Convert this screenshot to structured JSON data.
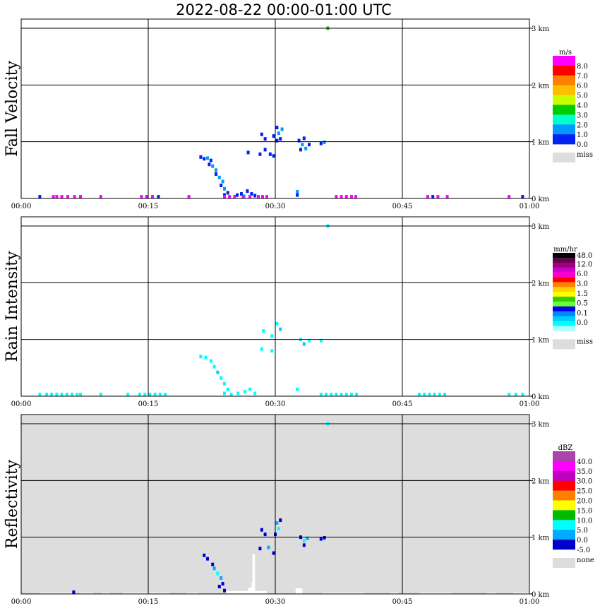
{
  "title": "2022-08-22   00:00-01:00 UTC",
  "time_ticks": [
    "00:00",
    "00:15",
    "00:30",
    "00:45",
    "01:00"
  ],
  "height_ticks": [
    "0 km",
    "1 km",
    "2 km",
    "3 km"
  ],
  "chart_data": [
    {
      "type": "heatmap",
      "panel": "fall-velocity",
      "ylabel": "Fall Velocity",
      "x_range_minutes": [
        0,
        60
      ],
      "y_range_km": [
        0,
        3.0
      ],
      "grid": true,
      "background": "#ffffff",
      "legend": {
        "unit": "m/s",
        "labels": [
          "8.0",
          "7.0",
          "6.0",
          "5.0",
          "4.0",
          "3.0",
          "2.0",
          "1.0",
          "0.0"
        ],
        "colors": [
          "#ff00ff",
          "#ff0000",
          "#ff7f00",
          "#ffbf00",
          "#c8ff00",
          "#00cc00",
          "#00ffcc",
          "#0099ff",
          "#0022ee"
        ],
        "missing_label": "miss",
        "missing_color": "#dddddd"
      },
      "cells": [
        {
          "t": 2.2,
          "h": 0.03,
          "c": 8
        },
        {
          "t": 3.8,
          "h": 0.03,
          "c": 0
        },
        {
          "t": 4.2,
          "h": 0.03,
          "c": 0
        },
        {
          "t": 4.8,
          "h": 0.03,
          "c": 0
        },
        {
          "t": 5.5,
          "h": 0.03,
          "c": 0
        },
        {
          "t": 6.3,
          "h": 0.03,
          "c": 0
        },
        {
          "t": 7.0,
          "h": 0.03,
          "c": 0
        },
        {
          "t": 9.4,
          "h": 0.03,
          "c": 0
        },
        {
          "t": 14.2,
          "h": 0.03,
          "c": 0
        },
        {
          "t": 14.8,
          "h": 0.03,
          "c": 0
        },
        {
          "t": 15.5,
          "h": 0.03,
          "c": 0
        },
        {
          "t": 16.2,
          "h": 0.03,
          "c": 8
        },
        {
          "t": 19.8,
          "h": 0.03,
          "c": 0
        },
        {
          "t": 21.2,
          "h": 0.73,
          "c": 8
        },
        {
          "t": 21.6,
          "h": 0.7,
          "c": 8
        },
        {
          "t": 22.0,
          "h": 0.71,
          "c": 7
        },
        {
          "t": 22.4,
          "h": 0.67,
          "c": 8
        },
        {
          "t": 22.2,
          "h": 0.6,
          "c": 8
        },
        {
          "t": 22.6,
          "h": 0.57,
          "c": 7
        },
        {
          "t": 23.0,
          "h": 0.5,
          "c": 7
        },
        {
          "t": 23.0,
          "h": 0.43,
          "c": 8
        },
        {
          "t": 23.4,
          "h": 0.37,
          "c": 7
        },
        {
          "t": 23.8,
          "h": 0.3,
          "c": 7
        },
        {
          "t": 23.6,
          "h": 0.23,
          "c": 8
        },
        {
          "t": 24.0,
          "h": 0.17,
          "c": 7
        },
        {
          "t": 24.4,
          "h": 0.1,
          "c": 8
        },
        {
          "t": 24.0,
          "h": 0.06,
          "c": 8
        },
        {
          "t": 24.0,
          "h": 0.03,
          "c": 0
        },
        {
          "t": 24.6,
          "h": 0.03,
          "c": 0
        },
        {
          "t": 25.2,
          "h": 0.03,
          "c": 0
        },
        {
          "t": 25.5,
          "h": 0.06,
          "c": 8
        },
        {
          "t": 26.0,
          "h": 0.08,
          "c": 8
        },
        {
          "t": 26.3,
          "h": 0.04,
          "c": 7
        },
        {
          "t": 26.7,
          "h": 0.13,
          "c": 8
        },
        {
          "t": 27.2,
          "h": 0.08,
          "c": 8
        },
        {
          "t": 27.6,
          "h": 0.05,
          "c": 8
        },
        {
          "t": 28.0,
          "h": 0.03,
          "c": 0
        },
        {
          "t": 28.5,
          "h": 0.03,
          "c": 0
        },
        {
          "t": 29.0,
          "h": 0.03,
          "c": 0
        },
        {
          "t": 27.0,
          "h": 0.03,
          "c": 0
        },
        {
          "t": 26.2,
          "h": 0.03,
          "c": 0
        },
        {
          "t": 26.8,
          "h": 0.81,
          "c": 8
        },
        {
          "t": 28.2,
          "h": 0.78,
          "c": 8
        },
        {
          "t": 28.8,
          "h": 0.86,
          "c": 8
        },
        {
          "t": 29.4,
          "h": 0.78,
          "c": 8
        },
        {
          "t": 29.8,
          "h": 0.75,
          "c": 8
        },
        {
          "t": 28.4,
          "h": 1.13,
          "c": 8
        },
        {
          "t": 28.8,
          "h": 1.05,
          "c": 8
        },
        {
          "t": 29.8,
          "h": 1.1,
          "c": 8
        },
        {
          "t": 30.2,
          "h": 1.25,
          "c": 8
        },
        {
          "t": 30.4,
          "h": 1.15,
          "c": 7
        },
        {
          "t": 30.8,
          "h": 1.22,
          "c": 7
        },
        {
          "t": 30.6,
          "h": 1.05,
          "c": 8
        },
        {
          "t": 30.2,
          "h": 1.02,
          "c": 8
        },
        {
          "t": 32.8,
          "h": 1.02,
          "c": 8
        },
        {
          "t": 33.2,
          "h": 0.95,
          "c": 7
        },
        {
          "t": 33.6,
          "h": 0.88,
          "c": 7
        },
        {
          "t": 33.4,
          "h": 1.06,
          "c": 8
        },
        {
          "t": 34.0,
          "h": 0.95,
          "c": 8
        },
        {
          "t": 33.0,
          "h": 0.86,
          "c": 8
        },
        {
          "t": 35.4,
          "h": 0.97,
          "c": 8
        },
        {
          "t": 35.8,
          "h": 0.99,
          "c": 7
        },
        {
          "t": 32.6,
          "h": 0.12,
          "c": 7
        },
        {
          "t": 32.6,
          "h": 0.06,
          "c": 8
        },
        {
          "t": 36.2,
          "h": 3.0,
          "c": 5
        },
        {
          "t": 37.2,
          "h": 0.03,
          "c": 0
        },
        {
          "t": 37.8,
          "h": 0.03,
          "c": 0
        },
        {
          "t": 38.4,
          "h": 0.03,
          "c": 0
        },
        {
          "t": 39.0,
          "h": 0.03,
          "c": 0
        },
        {
          "t": 39.5,
          "h": 0.03,
          "c": 0
        },
        {
          "t": 48.0,
          "h": 0.03,
          "c": 0
        },
        {
          "t": 48.6,
          "h": 0.03,
          "c": 8
        },
        {
          "t": 49.2,
          "h": 0.03,
          "c": 0
        },
        {
          "t": 50.3,
          "h": 0.03,
          "c": 0
        },
        {
          "t": 57.6,
          "h": 0.03,
          "c": 0
        },
        {
          "t": 59.2,
          "h": 0.03,
          "c": 8
        }
      ]
    },
    {
      "type": "heatmap",
      "panel": "rain-intensity",
      "ylabel": "Rain Intensity",
      "x_range_minutes": [
        0,
        60
      ],
      "y_range_km": [
        0,
        3.0
      ],
      "grid": true,
      "background": "#ffffff",
      "legend": {
        "unit": "mm/hr",
        "labels": [
          "48.0",
          "12.0",
          "6.0",
          "3.0",
          "1.5",
          "0.5",
          "0.1",
          "0.0"
        ],
        "colors": [
          "#000000",
          "#5a0a46",
          "#a0007f",
          "#cc00cc",
          "#ff00cc",
          "#ff0000",
          "#ff8000",
          "#ffd000",
          "#ffff00",
          "#33cc00",
          "#66ff33",
          "#0000ee",
          "#0088ff",
          "#00ccff",
          "#00ffff",
          "#aaffff"
        ],
        "missing_label": "miss",
        "missing_color": "#dddddd"
      },
      "cells": [
        {
          "t": 2.2,
          "h": 0.03,
          "c": 14
        },
        {
          "t": 3.0,
          "h": 0.03,
          "c": 14
        },
        {
          "t": 3.6,
          "h": 0.03,
          "c": 14
        },
        {
          "t": 4.2,
          "h": 0.03,
          "c": 14
        },
        {
          "t": 4.8,
          "h": 0.03,
          "c": 14
        },
        {
          "t": 5.4,
          "h": 0.03,
          "c": 14
        },
        {
          "t": 6.0,
          "h": 0.03,
          "c": 14
        },
        {
          "t": 6.6,
          "h": 0.03,
          "c": 14
        },
        {
          "t": 7.0,
          "h": 0.03,
          "c": 14
        },
        {
          "t": 9.4,
          "h": 0.03,
          "c": 14
        },
        {
          "t": 12.6,
          "h": 0.03,
          "c": 14
        },
        {
          "t": 14.0,
          "h": 0.03,
          "c": 14
        },
        {
          "t": 14.6,
          "h": 0.03,
          "c": 14
        },
        {
          "t": 15.2,
          "h": 0.03,
          "c": 14
        },
        {
          "t": 15.8,
          "h": 0.03,
          "c": 14
        },
        {
          "t": 16.4,
          "h": 0.03,
          "c": 14
        },
        {
          "t": 17.0,
          "h": 0.03,
          "c": 14
        },
        {
          "t": 21.2,
          "h": 0.7,
          "c": 14
        },
        {
          "t": 21.8,
          "h": 0.68,
          "c": 14
        },
        {
          "t": 22.4,
          "h": 0.62,
          "c": 14
        },
        {
          "t": 22.8,
          "h": 0.52,
          "c": 14
        },
        {
          "t": 23.2,
          "h": 0.42,
          "c": 13
        },
        {
          "t": 23.6,
          "h": 0.32,
          "c": 14
        },
        {
          "t": 24.0,
          "h": 0.22,
          "c": 14
        },
        {
          "t": 24.4,
          "h": 0.12,
          "c": 14
        },
        {
          "t": 24.0,
          "h": 0.05,
          "c": 14
        },
        {
          "t": 24.8,
          "h": 0.03,
          "c": 14
        },
        {
          "t": 25.6,
          "h": 0.05,
          "c": 14
        },
        {
          "t": 26.4,
          "h": 0.08,
          "c": 14
        },
        {
          "t": 27.0,
          "h": 0.12,
          "c": 14
        },
        {
          "t": 27.6,
          "h": 0.05,
          "c": 14
        },
        {
          "t": 28.6,
          "h": 1.15,
          "c": 14
        },
        {
          "t": 30.2,
          "h": 1.28,
          "c": 14
        },
        {
          "t": 30.6,
          "h": 1.18,
          "c": 13
        },
        {
          "t": 29.6,
          "h": 1.06,
          "c": 14
        },
        {
          "t": 28.4,
          "h": 0.83,
          "c": 14
        },
        {
          "t": 29.6,
          "h": 0.8,
          "c": 14
        },
        {
          "t": 33.0,
          "h": 1.0,
          "c": 14
        },
        {
          "t": 33.4,
          "h": 0.92,
          "c": 13
        },
        {
          "t": 34.0,
          "h": 0.98,
          "c": 14
        },
        {
          "t": 35.4,
          "h": 0.98,
          "c": 14
        },
        {
          "t": 32.6,
          "h": 0.12,
          "c": 14
        },
        {
          "t": 36.2,
          "h": 3.0,
          "c": 14
        },
        {
          "t": 35.4,
          "h": 0.03,
          "c": 14
        },
        {
          "t": 36.0,
          "h": 0.03,
          "c": 14
        },
        {
          "t": 36.6,
          "h": 0.03,
          "c": 14
        },
        {
          "t": 37.2,
          "h": 0.03,
          "c": 14
        },
        {
          "t": 37.8,
          "h": 0.03,
          "c": 14
        },
        {
          "t": 38.4,
          "h": 0.03,
          "c": 14
        },
        {
          "t": 39.0,
          "h": 0.03,
          "c": 14
        },
        {
          "t": 39.6,
          "h": 0.03,
          "c": 14
        },
        {
          "t": 47.0,
          "h": 0.03,
          "c": 14
        },
        {
          "t": 47.6,
          "h": 0.03,
          "c": 14
        },
        {
          "t": 48.2,
          "h": 0.03,
          "c": 14
        },
        {
          "t": 48.8,
          "h": 0.03,
          "c": 14
        },
        {
          "t": 49.4,
          "h": 0.03,
          "c": 14
        },
        {
          "t": 50.0,
          "h": 0.03,
          "c": 14
        },
        {
          "t": 57.6,
          "h": 0.03,
          "c": 14
        },
        {
          "t": 58.4,
          "h": 0.03,
          "c": 14
        },
        {
          "t": 59.2,
          "h": 0.03,
          "c": 14
        }
      ]
    },
    {
      "type": "heatmap",
      "panel": "reflectivity",
      "ylabel": "Reflectivity",
      "x_range_minutes": [
        0,
        60
      ],
      "y_range_km": [
        0,
        3.0
      ],
      "grid": true,
      "background": "#dddddd",
      "legend": {
        "unit": "dBZ",
        "labels": [
          "40.0",
          "35.0",
          "30.0",
          "25.0",
          "20.0",
          "15.0",
          "10.0",
          "5.0",
          "0.0",
          "-5.0"
        ],
        "colors": [
          "#aa44aa",
          "#ff00ff",
          "#c000c0",
          "#ff0000",
          "#ff7f00",
          "#ffff00",
          "#00bb00",
          "#00ffff",
          "#00aaff",
          "#0000cc"
        ],
        "missing_label": "none",
        "missing_color": "#dddddd"
      },
      "cells": [
        {
          "t": 21.6,
          "h": 0.68,
          "c": 9
        },
        {
          "t": 22.0,
          "h": 0.62,
          "c": 9
        },
        {
          "t": 22.6,
          "h": 0.52,
          "c": 9
        },
        {
          "t": 22.8,
          "h": 0.45,
          "c": 8
        },
        {
          "t": 23.2,
          "h": 0.36,
          "c": 7
        },
        {
          "t": 23.6,
          "h": 0.28,
          "c": 8
        },
        {
          "t": 23.8,
          "h": 0.18,
          "c": 9
        },
        {
          "t": 23.4,
          "h": 0.13,
          "c": 9
        },
        {
          "t": 24.0,
          "h": 0.06,
          "c": 9
        },
        {
          "t": 28.4,
          "h": 1.13,
          "c": 9
        },
        {
          "t": 28.8,
          "h": 1.05,
          "c": 9
        },
        {
          "t": 30.2,
          "h": 1.25,
          "c": 8
        },
        {
          "t": 30.4,
          "h": 1.15,
          "c": 7
        },
        {
          "t": 30.0,
          "h": 1.05,
          "c": 9
        },
        {
          "t": 30.6,
          "h": 1.3,
          "c": 9
        },
        {
          "t": 28.2,
          "h": 0.8,
          "c": 9
        },
        {
          "t": 29.2,
          "h": 0.82,
          "c": 8
        },
        {
          "t": 29.8,
          "h": 0.72,
          "c": 9
        },
        {
          "t": 33.0,
          "h": 1.0,
          "c": 9
        },
        {
          "t": 33.4,
          "h": 0.94,
          "c": 7
        },
        {
          "t": 33.8,
          "h": 0.98,
          "c": 8
        },
        {
          "t": 33.4,
          "h": 0.86,
          "c": 9
        },
        {
          "t": 35.4,
          "h": 0.97,
          "c": 9
        },
        {
          "t": 35.8,
          "h": 0.99,
          "c": 9
        },
        {
          "t": 36.2,
          "h": 3.0,
          "c": 7
        },
        {
          "t": 6.2,
          "h": 0.03,
          "c": 9
        }
      ],
      "clear_cells": [
        {
          "t0": 2.2,
          "t1": 6.0,
          "h": 0.02
        },
        {
          "t0": 7.0,
          "t1": 8.5,
          "h": 0.02
        },
        {
          "t0": 9.5,
          "t1": 10.5,
          "h": 0.02
        },
        {
          "t0": 12.0,
          "t1": 17.5,
          "h": 0.02
        },
        {
          "t0": 19.5,
          "t1": 21.0,
          "h": 0.02
        },
        {
          "t0": 24.2,
          "t1": 29.0,
          "h": 0.05
        },
        {
          "t0": 26.8,
          "t1": 27.5,
          "h": 0.11
        },
        {
          "t0": 27.2,
          "t1": 27.6,
          "h": 0.2
        },
        {
          "t0": 32.4,
          "t1": 33.2,
          "h": 0.1
        },
        {
          "t0": 35.5,
          "t1": 40.5,
          "h": 0.02
        },
        {
          "t0": 43.5,
          "t1": 44.5,
          "h": 0.02
        },
        {
          "t0": 47.0,
          "t1": 50.8,
          "h": 0.02
        },
        {
          "t0": 55.0,
          "t1": 56.0,
          "h": 0.02
        },
        {
          "t0": 58.0,
          "t1": 60.0,
          "h": 0.02
        },
        {
          "t0": 27.3,
          "t1": 27.6,
          "h": 0.7
        }
      ]
    }
  ]
}
